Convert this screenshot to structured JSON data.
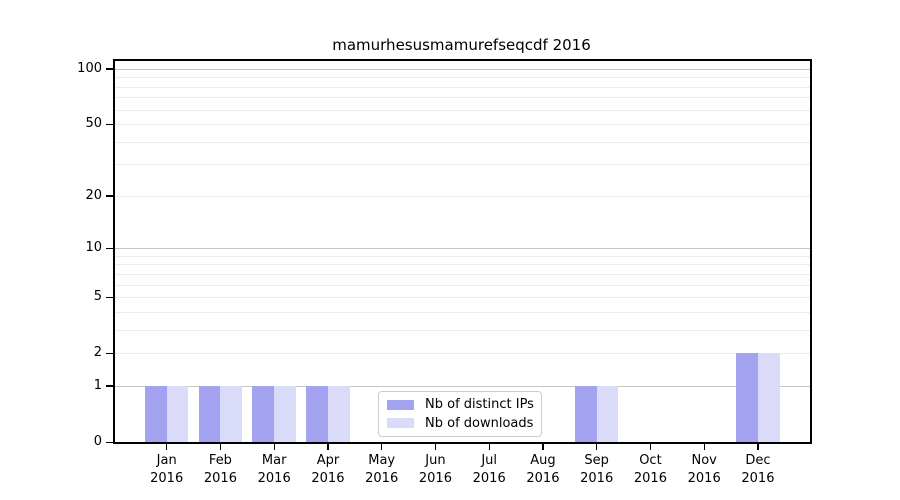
{
  "chart_data": {
    "type": "bar",
    "title": "mamurhesusmamurefseqcdf 2016",
    "categories": [
      "Jan 2016",
      "Feb 2016",
      "Mar 2016",
      "Apr 2016",
      "May 2016",
      "Jun 2016",
      "Jul 2016",
      "Aug 2016",
      "Sep 2016",
      "Oct 2016",
      "Nov 2016",
      "Dec 2016"
    ],
    "series": [
      {
        "name": "Nb of distinct IPs",
        "color": "#a2a2f0",
        "values": [
          1,
          1,
          1,
          1,
          0,
          0,
          0,
          0,
          1,
          0,
          0,
          2
        ]
      },
      {
        "name": "Nb of downloads",
        "color": "#dadaf9",
        "values": [
          1,
          1,
          1,
          1,
          0,
          0,
          0,
          0,
          1,
          0,
          0,
          2
        ]
      }
    ],
    "xlabel": "",
    "ylabel": "",
    "yscale": "log1p",
    "ylim": [
      0,
      113
    ],
    "yticks": [
      0,
      1,
      2,
      5,
      10,
      20,
      50,
      100
    ],
    "major_gridlines": [
      1,
      10,
      100
    ],
    "minor_gridlines": [
      2,
      3,
      4,
      5,
      6,
      7,
      8,
      9,
      20,
      30,
      40,
      50,
      60,
      70,
      80,
      90
    ],
    "grid": true,
    "legend": {
      "position": "lower center",
      "labels": [
        "Nb of distinct IPs",
        "Nb of downloads"
      ]
    }
  },
  "colors": {
    "background": "#ffffff",
    "axis": "#000000",
    "major_grid": "#c6c6c6",
    "minor_grid": "#ececec",
    "bar_distinct_ips": "#a2a2f0",
    "bar_downloads": "#dadaf9",
    "legend_border": "#cccccc"
  }
}
